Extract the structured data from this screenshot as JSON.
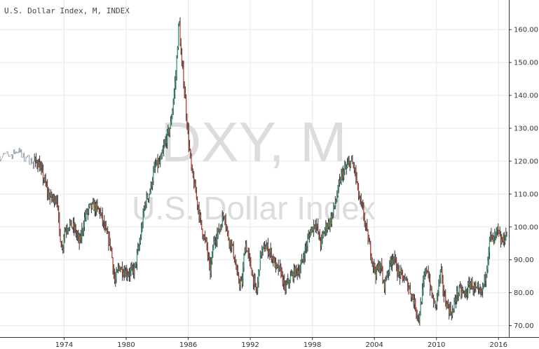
{
  "title": "U.S. Dollar Index, M, INDEX",
  "watermark": {
    "symbol": "DXY, M",
    "name": "U.S. Dollar Index"
  },
  "colors": {
    "up": "#2a9d6e",
    "down": "#c0392b",
    "wick": "#333333",
    "pre": "#8899aa",
    "grid": "#e8e8e8",
    "axis": "#333333"
  },
  "chart_data": {
    "type": "line",
    "title": "U.S. Dollar Index, M, INDEX",
    "xlabel": "",
    "ylabel": "",
    "xlim": [
      1967.8,
      2017.0
    ],
    "ylim": [
      66.5,
      169
    ],
    "x_ticks": [
      1974,
      1980,
      1986,
      1992,
      1998,
      2004,
      2010,
      2016
    ],
    "y_ticks": [
      70,
      80,
      90,
      100,
      110,
      120,
      130,
      140,
      150,
      160
    ],
    "y_tick_labels": [
      "70.00",
      "80.00",
      "90.00",
      "100.00",
      "110.00",
      "120.00",
      "130.00",
      "140.00",
      "150.00",
      "160.00"
    ],
    "grid": true,
    "series": [
      {
        "values": [
          [
            1967.8,
            121.5
          ],
          [
            1969.0,
            122.0
          ],
          [
            1969.5,
            123.5
          ],
          [
            1970.0,
            121.5
          ],
          [
            1971.0,
            120.0
          ],
          [
            1971.5,
            119.5
          ],
          [
            1972.0,
            115.0
          ],
          [
            1972.5,
            109.5
          ],
          [
            1973.0,
            108.5
          ],
          [
            1973.3,
            109.0
          ],
          [
            1973.5,
            100.0
          ],
          [
            1973.8,
            93.0
          ],
          [
            1974.0,
            98.5
          ],
          [
            1974.5,
            101.0
          ],
          [
            1975.0,
            99.5
          ],
          [
            1975.5,
            95.0
          ],
          [
            1976.0,
            103.0
          ],
          [
            1976.5,
            106.0
          ],
          [
            1977.0,
            106.0
          ],
          [
            1977.5,
            104.5
          ],
          [
            1978.0,
            98.5
          ],
          [
            1978.5,
            94.5
          ],
          [
            1978.9,
            83.0
          ],
          [
            1979.3,
            88.0
          ],
          [
            1979.8,
            86.5
          ],
          [
            1980.3,
            86.0
          ],
          [
            1980.8,
            87.0
          ],
          [
            1981.3,
            95.0
          ],
          [
            1981.8,
            107.0
          ],
          [
            1982.3,
            111.0
          ],
          [
            1982.8,
            118.5
          ],
          [
            1983.3,
            119.5
          ],
          [
            1983.8,
            126.0
          ],
          [
            1984.3,
            131.0
          ],
          [
            1984.8,
            146.0
          ],
          [
            1985.1,
            163.5
          ],
          [
            1985.3,
            152.0
          ],
          [
            1985.6,
            143.0
          ],
          [
            1985.9,
            131.0
          ],
          [
            1986.3,
            117.5
          ],
          [
            1986.8,
            109.0
          ],
          [
            1987.3,
            99.5
          ],
          [
            1987.8,
            94.0
          ],
          [
            1988.1,
            86.0
          ],
          [
            1988.5,
            96.0
          ],
          [
            1989.0,
            99.0
          ],
          [
            1989.5,
            104.5
          ],
          [
            1989.8,
            97.5
          ],
          [
            1990.3,
            93.5
          ],
          [
            1990.8,
            84.0
          ],
          [
            1991.2,
            82.5
          ],
          [
            1991.5,
            95.5
          ],
          [
            1992.0,
            88.5
          ],
          [
            1992.6,
            79.5
          ],
          [
            1993.0,
            92.0
          ],
          [
            1993.5,
            94.0
          ],
          [
            1994.0,
            92.0
          ],
          [
            1994.5,
            87.5
          ],
          [
            1995.0,
            86.5
          ],
          [
            1995.3,
            81.0
          ],
          [
            1995.8,
            84.0
          ],
          [
            1996.3,
            86.5
          ],
          [
            1996.8,
            87.0
          ],
          [
            1997.3,
            93.0
          ],
          [
            1997.8,
            98.5
          ],
          [
            1998.3,
            101.5
          ],
          [
            1998.8,
            95.0
          ],
          [
            1999.3,
            100.0
          ],
          [
            1999.8,
            102.0
          ],
          [
            2000.3,
            108.5
          ],
          [
            2000.8,
            115.5
          ],
          [
            2001.3,
            118.0
          ],
          [
            2001.7,
            120.0
          ],
          [
            2002.1,
            117.5
          ],
          [
            2002.5,
            109.0
          ],
          [
            2002.9,
            104.5
          ],
          [
            2003.4,
            96.0
          ],
          [
            2003.8,
            90.0
          ],
          [
            2004.1,
            86.0
          ],
          [
            2004.6,
            88.5
          ],
          [
            2004.9,
            82.0
          ],
          [
            2005.4,
            87.5
          ],
          [
            2005.8,
            91.5
          ],
          [
            2006.3,
            86.0
          ],
          [
            2006.8,
            84.5
          ],
          [
            2007.3,
            82.0
          ],
          [
            2007.8,
            77.5
          ],
          [
            2008.3,
            72.0
          ],
          [
            2008.8,
            84.0
          ],
          [
            2009.1,
            88.0
          ],
          [
            2009.5,
            79.5
          ],
          [
            2009.9,
            75.5
          ],
          [
            2010.4,
            86.5
          ],
          [
            2010.8,
            78.0
          ],
          [
            2011.3,
            74.5
          ],
          [
            2011.6,
            74.0
          ],
          [
            2011.9,
            79.5
          ],
          [
            2012.3,
            80.5
          ],
          [
            2012.8,
            79.5
          ],
          [
            2013.3,
            83.0
          ],
          [
            2013.8,
            80.5
          ],
          [
            2014.3,
            79.5
          ],
          [
            2014.7,
            84.5
          ],
          [
            2014.9,
            89.0
          ],
          [
            2015.2,
            97.5
          ],
          [
            2015.5,
            95.5
          ],
          [
            2015.9,
            99.0
          ],
          [
            2016.2,
            95.5
          ],
          [
            2016.5,
            96.0
          ],
          [
            2016.8,
            98.5
          ]
        ]
      }
    ]
  }
}
